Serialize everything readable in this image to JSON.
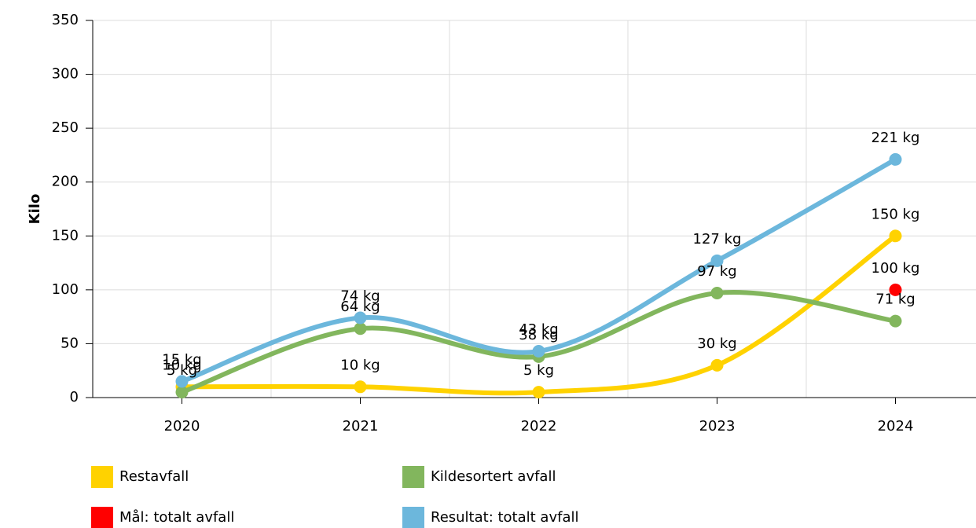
{
  "chart_data": {
    "type": "line",
    "y_label": "Kilo",
    "categories": [
      "2020",
      "2021",
      "2022",
      "2023",
      "2024"
    ],
    "series": [
      {
        "name": "Restavfall",
        "color": "#ffd200",
        "values": [
          10,
          10,
          5,
          30,
          150
        ],
        "value_labels": [
          "10 kg",
          "10 kg",
          "5 kg",
          "30 kg",
          "150 kg"
        ]
      },
      {
        "name": "Kildesortert avfall",
        "color": "#82b65d",
        "values": [
          5,
          64,
          38,
          97,
          71
        ],
        "value_labels": [
          "5 kg",
          "64 kg",
          "38 kg",
          "97 kg",
          "71 kg"
        ]
      },
      {
        "name": "Mål: totalt avfall",
        "color": "#ff0000",
        "values": [
          null,
          null,
          null,
          null,
          100
        ],
        "value_labels": [
          null,
          null,
          null,
          null,
          "100 kg"
        ]
      },
      {
        "name": "Resultat: totalt avfall",
        "color": "#6cb7dc",
        "values": [
          15,
          74,
          43,
          127,
          221
        ],
        "value_labels": [
          "15 kg",
          "74 kg",
          "43 kg",
          "127 kg",
          "221 kg"
        ]
      }
    ],
    "ylim": [
      0,
      350
    ],
    "yticks": [
      0,
      50,
      100,
      150,
      200,
      250,
      300,
      350
    ],
    "grid": true
  }
}
